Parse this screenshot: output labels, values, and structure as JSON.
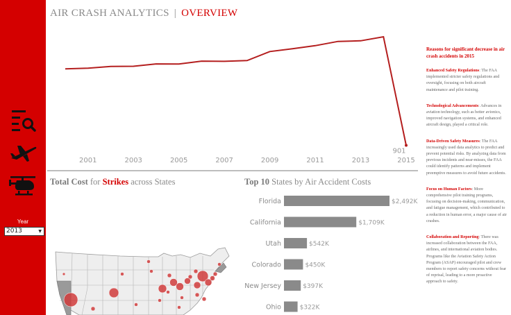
{
  "header": {
    "title_main": "AIR CRASH ANALYTICS",
    "separator": "|",
    "title_accent": "OVERVIEW"
  },
  "sidebar": {
    "icons": [
      "search-list-icon",
      "airplane-icon",
      "helicopter-icon"
    ],
    "year_label": "Year",
    "year_value": "2013"
  },
  "line_chart": {
    "chart_data": {
      "type": "line",
      "x": [
        2000,
        2001,
        2002,
        2003,
        2004,
        2005,
        2006,
        2007,
        2008,
        2009,
        2010,
        2011,
        2012,
        2013,
        2014,
        2015
      ],
      "values": [
        10400,
        10480,
        10700,
        10720,
        11010,
        11000,
        11360,
        11330,
        11430,
        12550,
        12900,
        13280,
        13800,
        13880,
        14380,
        901
      ],
      "tick_labels": [
        "2001",
        "2003",
        "2005",
        "2007",
        "2009",
        "2011",
        "2013",
        "2015"
      ],
      "data_labels": [
        {
          "x": 2015,
          "label": "901"
        }
      ],
      "ylim": [
        0,
        15500
      ],
      "color": "#b41e1e",
      "grid": false
    }
  },
  "strikes_panel": {
    "title_part1": "Total",
    "title_part2": "Cost",
    "title_part3": "for",
    "title_part4": "Strikes",
    "title_part5": "across States"
  },
  "top10_panel": {
    "title_part1": "Top",
    "title_part2": "10",
    "title_part3": "States by Air Accident Costs",
    "chart_data": {
      "type": "bar",
      "orientation": "horizontal",
      "categories": [
        "Florida",
        "California",
        "Utah",
        "Colorado",
        "New Jersey",
        "Ohio"
      ],
      "values": [
        2492,
        1709,
        542,
        450,
        397,
        322
      ],
      "value_labels": [
        "$2,492K",
        "$1,709K",
        "$542K",
        "$450K",
        "$397K",
        "$322K"
      ],
      "xlim": [
        0,
        2492
      ],
      "color": "#8a8a8a"
    }
  },
  "map_panel": {
    "marker_color": "#d03c3c",
    "state_fill": "#eeeeee",
    "highlight_fill": "#9a9a9a"
  },
  "notes": {
    "title": "Reasons for significant decrease in air crash accidents in 2015",
    "items": [
      {
        "heading": "Enhanced Safety Regulations",
        "text": ": The FAA implemented stricter safety regulations and oversight, focusing on both aircraft maintenance and pilot training."
      },
      {
        "heading": "Technological Advancements",
        "text": ": Advances in aviation technology, such as better avionics, improved navigation systems, and enhanced aircraft design, played a critical role."
      },
      {
        "heading": "Data-Driven Safety Measures",
        "text": ": The FAA increasingly used data analytics to predict and prevent potential risks. By analyzing data from previous incidents and near-misses, the FAA could identify patterns and implement preemptive measures to avoid future accidents."
      },
      {
        "heading": "Focus on Human Factors",
        "text": ": More comprehensive pilot training programs, focusing on decision-making, communication, and fatigue management, which contributed to a reduction in human error, a major cause of air crashes."
      },
      {
        "heading": "Collaboration and Reporting",
        "text": ": There was increased collaboration between the FAA, airlines, and international aviation bodies. Programs like the Aviation Safety Action Program (ASAP) encouraged pilot and crew members to report safety concerns without fear of reprisal, leading to a more proactive approach to safety."
      }
    ]
  }
}
